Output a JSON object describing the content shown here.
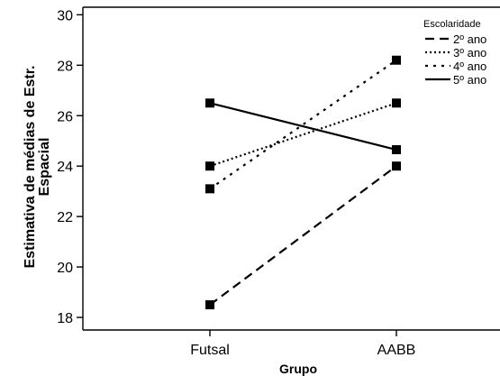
{
  "chart_data": {
    "type": "line",
    "categories": [
      "Futsal",
      "AABB"
    ],
    "xlabel": "Grupo",
    "ylabel_lines": [
      "Estimativa de médias de Estr.",
      "Espacial"
    ],
    "ylim": [
      17.5,
      30.3
    ],
    "yticks": [
      18,
      20,
      22,
      24,
      26,
      28,
      30
    ],
    "legend_title": "Escolaridade",
    "legend_position": "top-right",
    "series": [
      {
        "name": "2º ano",
        "values": [
          18.5,
          24.0
        ],
        "dash": "10 6"
      },
      {
        "name": "3º ano",
        "values": [
          24.0,
          26.5
        ],
        "dash": "2 3"
      },
      {
        "name": "4º ano",
        "values": [
          23.1,
          28.2
        ],
        "dash": "3 6"
      },
      {
        "name": "5º ano",
        "values": [
          26.5,
          24.65
        ],
        "dash": ""
      }
    ],
    "marker": "square",
    "line_color": "#000000",
    "grid": false
  }
}
